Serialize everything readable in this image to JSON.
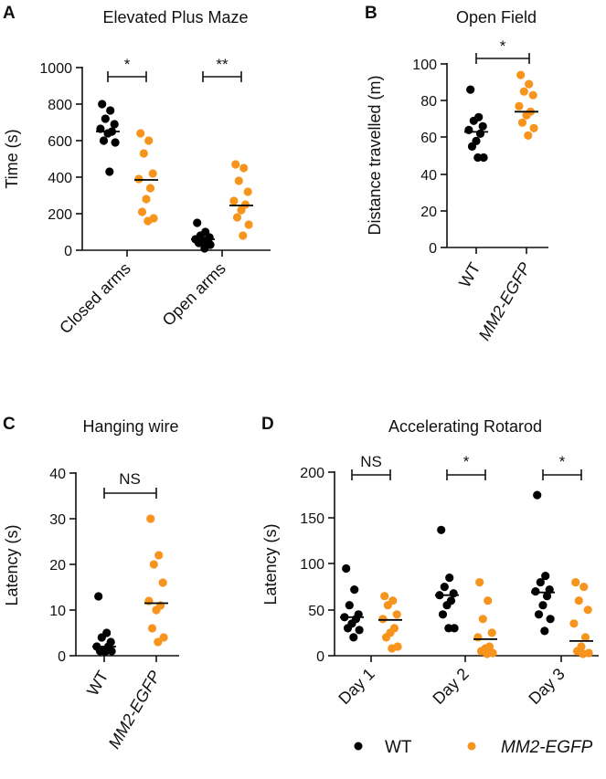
{
  "colors": {
    "wt": "#000000",
    "mm2": "#f7941d",
    "text": "#111111"
  },
  "legend": [
    {
      "label": "WT",
      "italic": false,
      "color": "#000000"
    },
    {
      "label": "MM2-EGFP",
      "italic": true,
      "color": "#f7941d"
    }
  ],
  "chart_data": [
    {
      "panel": "A",
      "type": "scatter",
      "title": "Elevated Plus Maze",
      "ylabel": "Time (s)",
      "ylim": [
        0,
        1000
      ],
      "yticks": [
        "0",
        "200",
        "400",
        "600",
        "800",
        "1000"
      ],
      "categories": [
        "Closed arms",
        "Open arms"
      ],
      "series": [
        {
          "name": "WT",
          "mean": [
            650,
            60
          ],
          "values": [
            [
              800,
              765,
              720,
              690,
              665,
              650,
              640,
              600,
              590,
              430
            ],
            [
              150,
              100,
              80,
              70,
              60,
              55,
              45,
              40,
              30,
              10
            ]
          ]
        },
        {
          "name": "MM2-EGFP",
          "mean": [
            385,
            245
          ],
          "values": [
            [
              640,
              600,
              530,
              420,
              390,
              340,
              280,
              210,
              175,
              160
            ],
            [
              470,
              450,
              380,
              320,
              270,
              250,
              220,
              180,
              140,
              80
            ]
          ]
        }
      ],
      "significance": [
        {
          "category": "Closed arms",
          "label": "*"
        },
        {
          "category": "Open arms",
          "label": "**"
        }
      ]
    },
    {
      "panel": "B",
      "type": "scatter",
      "title": "Open Field",
      "ylabel": "Distance travelled (m)",
      "ylim": [
        0,
        100
      ],
      "yticks": [
        "0",
        "20",
        "40",
        "60",
        "80",
        "100"
      ],
      "categories": [
        "WT",
        "MM2-EGFP"
      ],
      "series": [
        {
          "name": "WT",
          "mean": [
            63
          ],
          "values": [
            [
              86,
              71,
              69,
              66,
              64,
              62,
              58,
              55,
              49,
              49
            ]
          ]
        },
        {
          "name": "MM2-EGFP",
          "mean": [
            74
          ],
          "values": [
            [
              94,
              89,
              85,
              83,
              77,
              74,
              72,
              68,
              65,
              61
            ]
          ]
        }
      ],
      "significance": [
        {
          "category": "between",
          "label": "*"
        }
      ]
    },
    {
      "panel": "C",
      "type": "scatter",
      "title": "Hanging wire",
      "ylabel": "Latency (s)",
      "ylim": [
        0,
        40
      ],
      "yticks": [
        "0",
        "10",
        "20",
        "30",
        "40"
      ],
      "categories": [
        "WT",
        "MM2-EGFP"
      ],
      "series": [
        {
          "name": "WT",
          "mean": [
            2
          ],
          "values": [
            [
              13,
              5,
              4,
              3,
              2,
              2,
              1,
              1,
              1,
              1
            ]
          ]
        },
        {
          "name": "MM2-EGFP",
          "mean": [
            11.5
          ],
          "values": [
            [
              30,
              22,
              20,
              16,
              12,
              11,
              10,
              6,
              4,
              3
            ]
          ]
        }
      ],
      "significance": [
        {
          "category": "between",
          "label": "NS"
        }
      ]
    },
    {
      "panel": "D",
      "type": "scatter",
      "title": "Accelerating Rotarod",
      "ylabel": "Latency (s)",
      "ylim": [
        0,
        200
      ],
      "yticks": [
        "0",
        "50",
        "100",
        "150",
        "200"
      ],
      "categories": [
        "Day 1",
        "Day 2",
        "Day 3"
      ],
      "series": [
        {
          "name": "WT",
          "mean": [
            42,
            66,
            69
          ],
          "values": [
            [
              95,
              72,
              55,
              45,
              42,
              40,
              35,
              30,
              28,
              20
            ],
            [
              137,
              85,
              75,
              68,
              66,
              60,
              55,
              45,
              30,
              30
            ],
            [
              175,
              87,
              80,
              72,
              70,
              65,
              55,
              45,
              40,
              27
            ]
          ]
        },
        {
          "name": "MM2-EGFP",
          "mean": [
            39,
            18,
            16
          ],
          "values": [
            [
              65,
              60,
              55,
              45,
              40,
              30,
              25,
              20,
              10,
              8
            ],
            [
              80,
              60,
              40,
              25,
              20,
              10,
              8,
              5,
              3,
              2
            ],
            [
              80,
              75,
              60,
              50,
              35,
              20,
              10,
              5,
              3,
              2
            ]
          ]
        }
      ],
      "significance": [
        {
          "category": "Day 1",
          "label": "NS"
        },
        {
          "category": "Day 2",
          "label": "*"
        },
        {
          "category": "Day 3",
          "label": "*"
        }
      ]
    }
  ]
}
